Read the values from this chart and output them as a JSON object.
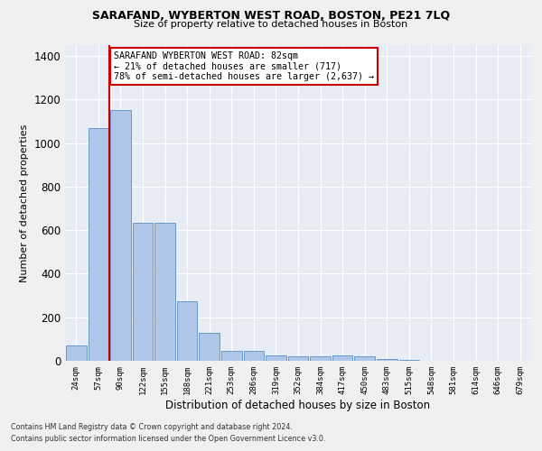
{
  "title": "SARAFAND, WYBERTON WEST ROAD, BOSTON, PE21 7LQ",
  "subtitle": "Size of property relative to detached houses in Boston",
  "xlabel": "Distribution of detached houses by size in Boston",
  "ylabel": "Number of detached properties",
  "bar_values": [
    70,
    1070,
    1150,
    635,
    635,
    275,
    130,
    45,
    45,
    25,
    20,
    20,
    25,
    20,
    10,
    5,
    2,
    2,
    2,
    2,
    1
  ],
  "bin_labels": [
    "24sqm",
    "57sqm",
    "90sqm",
    "122sqm",
    "155sqm",
    "188sqm",
    "221sqm",
    "253sqm",
    "286sqm",
    "319sqm",
    "352sqm",
    "384sqm",
    "417sqm",
    "450sqm",
    "483sqm",
    "515sqm",
    "548sqm",
    "581sqm",
    "614sqm",
    "646sqm",
    "679sqm"
  ],
  "bar_color": "#aec6e8",
  "bar_edge_color": "#5a8fc2",
  "bg_color": "#e8ecf5",
  "grid_color": "#ffffff",
  "vline_x_index": 1.5,
  "vline_color": "#cc0000",
  "annotation_text": "SARAFAND WYBERTON WEST ROAD: 82sqm\n← 21% of detached houses are smaller (717)\n78% of semi-detached houses are larger (2,637) →",
  "annotation_box_color": "#ffffff",
  "annotation_box_edge": "#cc0000",
  "ylim": [
    0,
    1450
  ],
  "yticks": [
    0,
    200,
    400,
    600,
    800,
    1000,
    1200,
    1400
  ],
  "footer1": "Contains HM Land Registry data © Crown copyright and database right 2024.",
  "footer2": "Contains public sector information licensed under the Open Government Licence v3.0.",
  "fig_bg": "#f0f0f0"
}
